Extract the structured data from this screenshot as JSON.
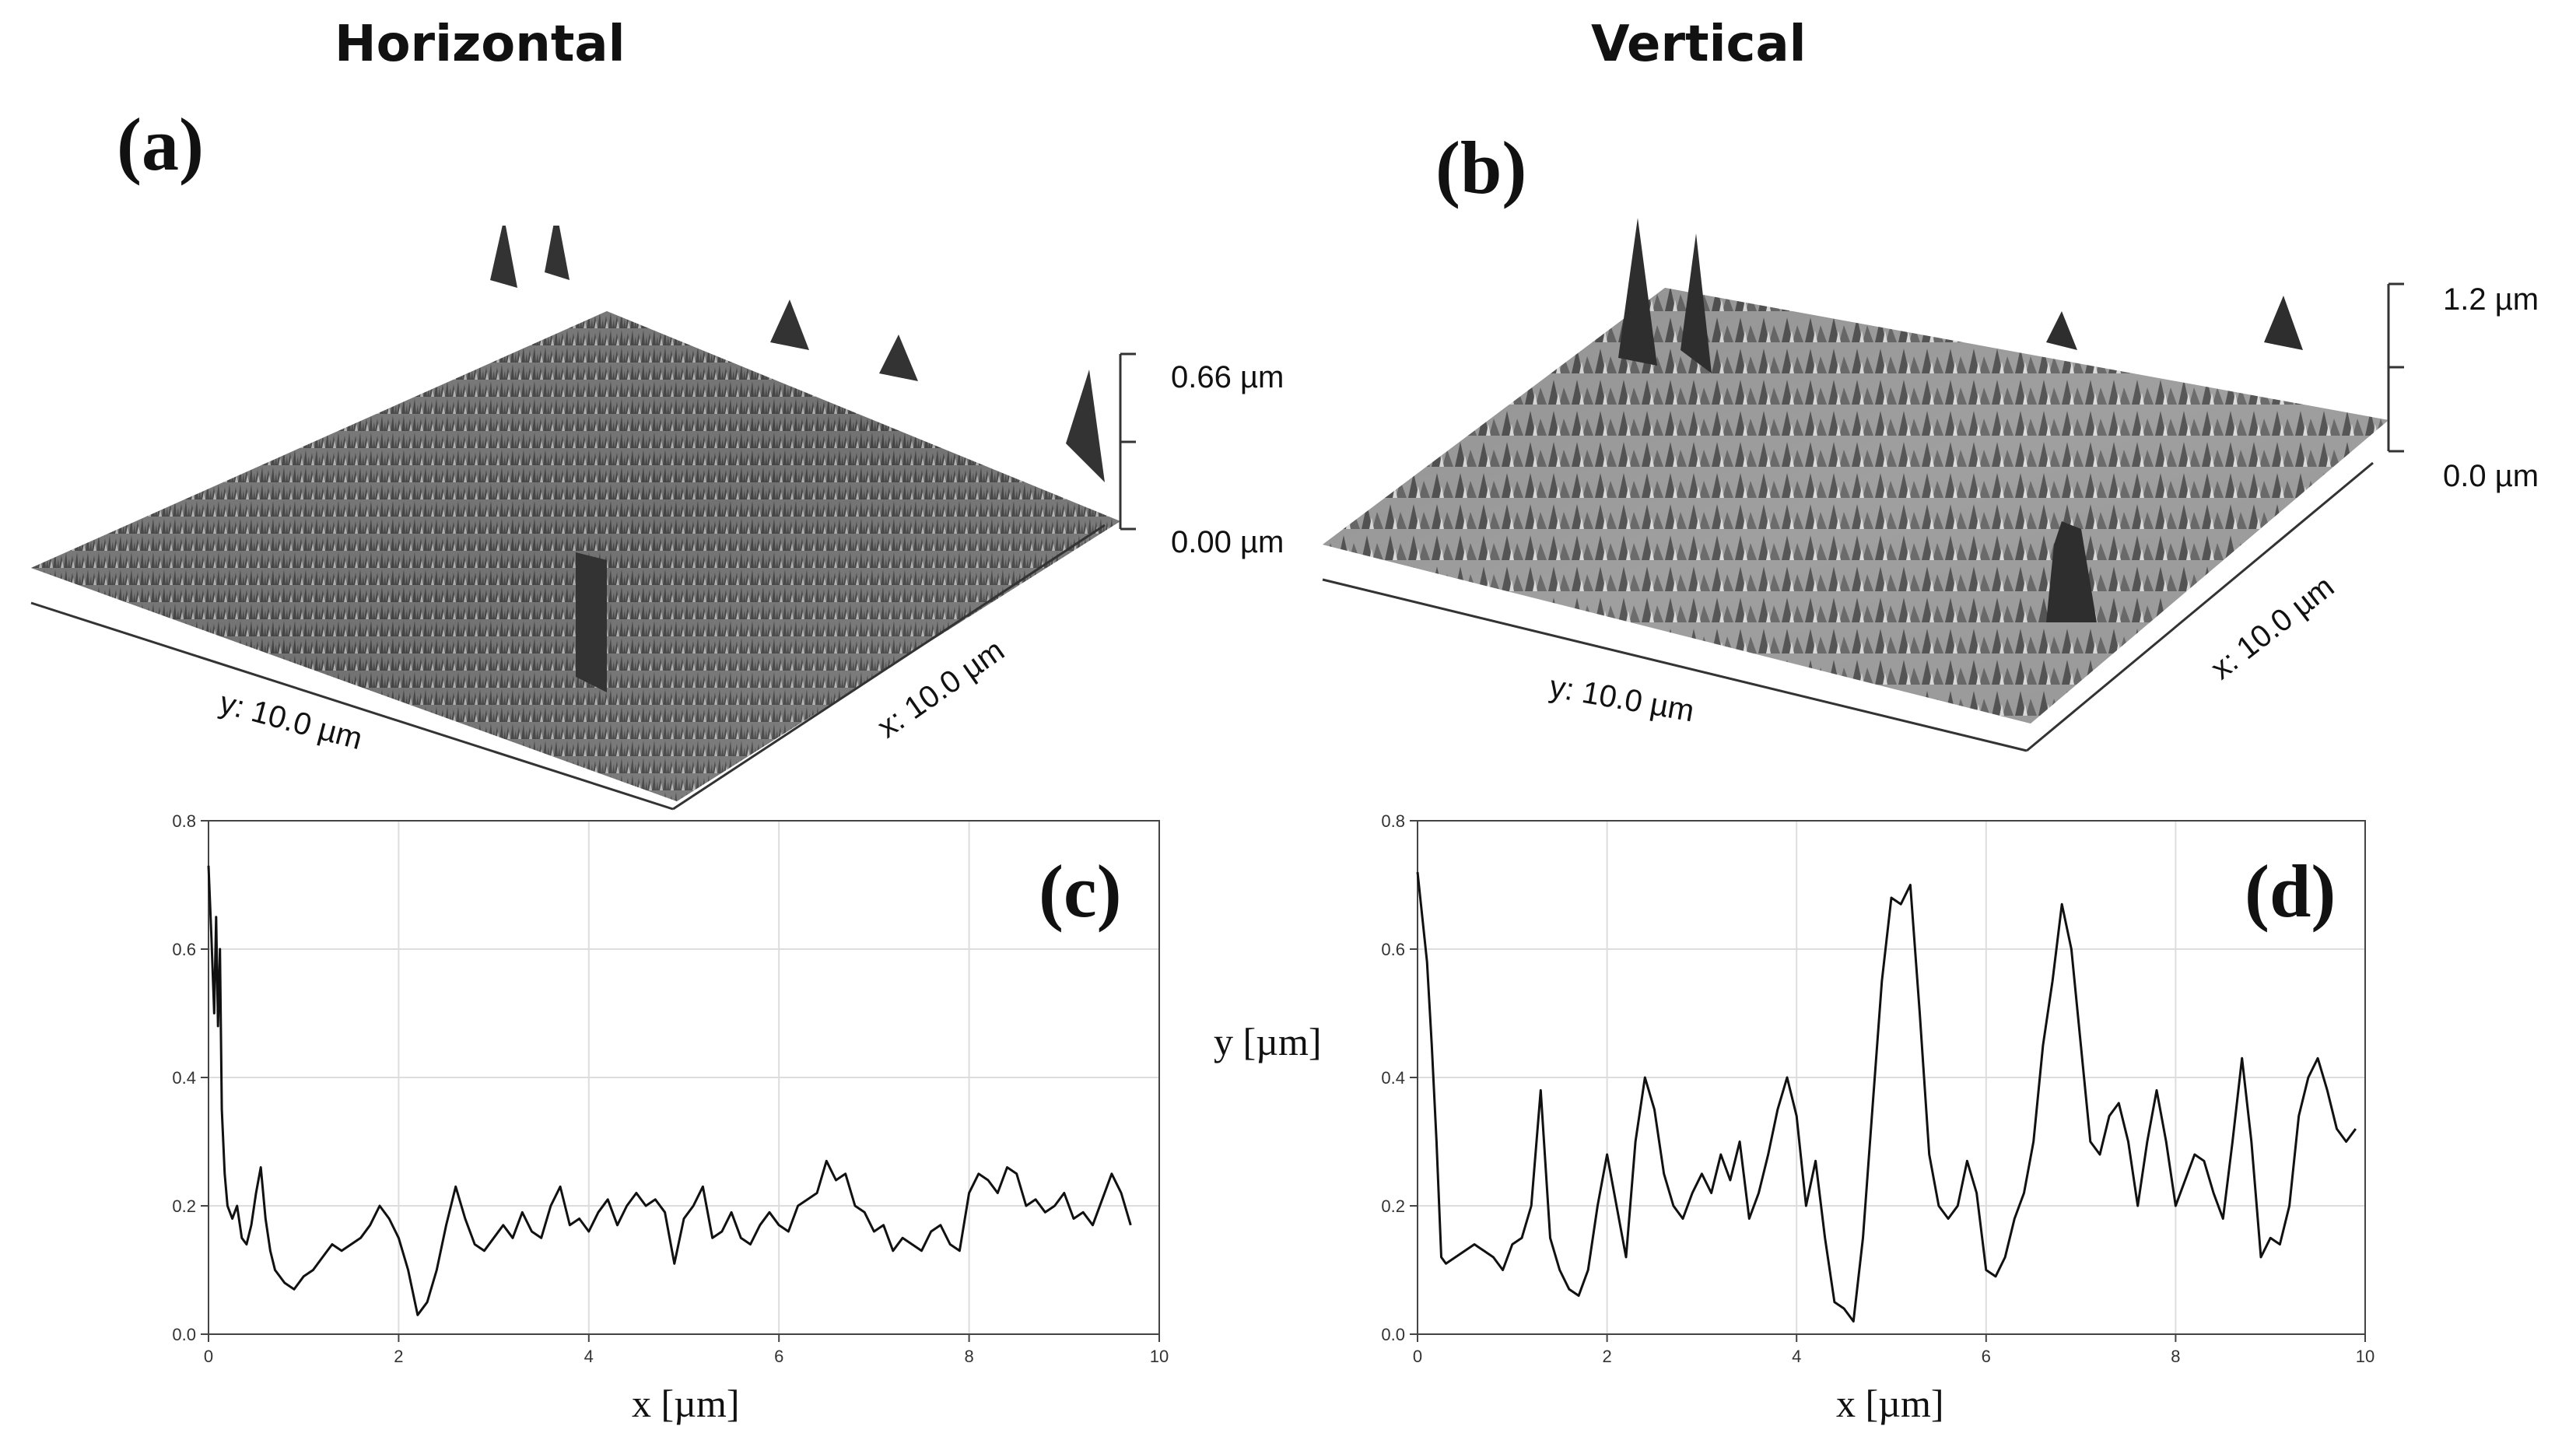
{
  "column_titles": {
    "left": "Horizontal",
    "right": "Vertical"
  },
  "panel_labels": {
    "a": "(a)",
    "b": "(b)",
    "c": "(c)",
    "d": "(d)"
  },
  "surface_a": {
    "height_top": "0.66 µm",
    "height_bottom": "0.00 µm",
    "x_label": "x: 10.0 µm",
    "y_label": "y: 10.0 µm"
  },
  "surface_b": {
    "height_top": "1.2 µm",
    "height_bottom": "0.0 µm",
    "x_label": "x: 10.0 µm",
    "y_label": "y: 10.0 µm"
  },
  "colors": {
    "line": "#111111",
    "grid": "#dddddd",
    "axis": "#444444",
    "surface_dark": "#3a3a3a",
    "surface_light": "#bdbdbd"
  },
  "chart_data": [
    {
      "type": "line",
      "panel": "(c)",
      "xlabel": "x [µm]",
      "ylabel": "",
      "xlim": [
        0,
        10
      ],
      "ylim": [
        0,
        0.8
      ],
      "xticks": [
        0,
        2,
        4,
        6,
        8,
        10
      ],
      "yticks": [
        "0.0",
        "0.2",
        "0.4",
        "0.6",
        "0.8"
      ],
      "grid": true,
      "series": [
        {
          "x": [
            0,
            0.03,
            0.06,
            0.08,
            0.1,
            0.12,
            0.14,
            0.17,
            0.2,
            0.25,
            0.3,
            0.35,
            0.4,
            0.45,
            0.5,
            0.55,
            0.6,
            0.65,
            0.7,
            0.8,
            0.9,
            1.0,
            1.1,
            1.2,
            1.3,
            1.4,
            1.5,
            1.6,
            1.7,
            1.8,
            1.9,
            2.0,
            2.1,
            2.2,
            2.3,
            2.4,
            2.5,
            2.6,
            2.7,
            2.8,
            2.9,
            3.0,
            3.1,
            3.2,
            3.3,
            3.4,
            3.5,
            3.6,
            3.7,
            3.8,
            3.9,
            4.0,
            4.1,
            4.2,
            4.3,
            4.4,
            4.5,
            4.6,
            4.7,
            4.8,
            4.9,
            5.0,
            5.1,
            5.2,
            5.3,
            5.4,
            5.5,
            5.6,
            5.7,
            5.8,
            5.9,
            6.0,
            6.1,
            6.2,
            6.3,
            6.4,
            6.5,
            6.6,
            6.7,
            6.8,
            6.9,
            7.0,
            7.1,
            7.2,
            7.3,
            7.4,
            7.5,
            7.6,
            7.7,
            7.8,
            7.9,
            8.0,
            8.1,
            8.2,
            8.3,
            8.4,
            8.5,
            8.6,
            8.7,
            8.8,
            8.9,
            9.0,
            9.1,
            9.2,
            9.3,
            9.4,
            9.5,
            9.6,
            9.7
          ],
          "y": [
            0.73,
            0.62,
            0.5,
            0.65,
            0.48,
            0.6,
            0.35,
            0.25,
            0.2,
            0.18,
            0.2,
            0.15,
            0.14,
            0.17,
            0.22,
            0.26,
            0.18,
            0.13,
            0.1,
            0.08,
            0.07,
            0.09,
            0.1,
            0.12,
            0.14,
            0.13,
            0.14,
            0.15,
            0.17,
            0.2,
            0.18,
            0.15,
            0.1,
            0.03,
            0.05,
            0.1,
            0.17,
            0.23,
            0.18,
            0.14,
            0.13,
            0.15,
            0.17,
            0.15,
            0.19,
            0.16,
            0.15,
            0.2,
            0.23,
            0.17,
            0.18,
            0.16,
            0.19,
            0.21,
            0.17,
            0.2,
            0.22,
            0.2,
            0.21,
            0.19,
            0.11,
            0.18,
            0.2,
            0.23,
            0.15,
            0.16,
            0.19,
            0.15,
            0.14,
            0.17,
            0.19,
            0.17,
            0.16,
            0.2,
            0.21,
            0.22,
            0.27,
            0.24,
            0.25,
            0.2,
            0.19,
            0.16,
            0.17,
            0.13,
            0.15,
            0.14,
            0.13,
            0.16,
            0.17,
            0.14,
            0.13,
            0.22,
            0.25,
            0.24,
            0.22,
            0.26,
            0.25,
            0.2,
            0.21,
            0.19,
            0.2,
            0.22,
            0.18,
            0.19,
            0.17,
            0.21,
            0.25,
            0.22,
            0.17
          ]
        }
      ]
    },
    {
      "type": "line",
      "panel": "(d)",
      "xlabel": "x [µm]",
      "ylabel": "y [µm]",
      "xlim": [
        0,
        10
      ],
      "ylim": [
        0,
        0.8
      ],
      "xticks": [
        0,
        2,
        4,
        6,
        8,
        10
      ],
      "yticks": [
        "0.0",
        "0.2",
        "0.4",
        "0.6",
        "0.8"
      ],
      "grid": true,
      "series": [
        {
          "x": [
            0,
            0.05,
            0.1,
            0.15,
            0.2,
            0.25,
            0.3,
            0.4,
            0.5,
            0.6,
            0.7,
            0.8,
            0.9,
            1.0,
            1.1,
            1.2,
            1.3,
            1.4,
            1.5,
            1.6,
            1.7,
            1.8,
            1.9,
            2.0,
            2.1,
            2.2,
            2.3,
            2.4,
            2.5,
            2.6,
            2.7,
            2.8,
            2.9,
            3.0,
            3.1,
            3.2,
            3.3,
            3.4,
            3.5,
            3.6,
            3.7,
            3.8,
            3.9,
            4.0,
            4.1,
            4.2,
            4.3,
            4.4,
            4.5,
            4.6,
            4.7,
            4.8,
            4.9,
            5.0,
            5.1,
            5.2,
            5.3,
            5.4,
            5.5,
            5.6,
            5.7,
            5.8,
            5.9,
            6.0,
            6.1,
            6.2,
            6.3,
            6.4,
            6.5,
            6.6,
            6.7,
            6.8,
            6.9,
            7.0,
            7.1,
            7.2,
            7.3,
            7.4,
            7.5,
            7.6,
            7.7,
            7.8,
            7.9,
            8.0,
            8.1,
            8.2,
            8.3,
            8.4,
            8.5,
            8.6,
            8.7,
            8.8,
            8.9,
            9.0,
            9.1,
            9.2,
            9.3,
            9.4,
            9.5,
            9.6,
            9.7,
            9.8,
            9.9
          ],
          "y": [
            0.72,
            0.65,
            0.58,
            0.45,
            0.3,
            0.12,
            0.11,
            0.12,
            0.13,
            0.14,
            0.13,
            0.12,
            0.1,
            0.14,
            0.15,
            0.2,
            0.38,
            0.15,
            0.1,
            0.07,
            0.06,
            0.1,
            0.2,
            0.28,
            0.2,
            0.12,
            0.3,
            0.4,
            0.35,
            0.25,
            0.2,
            0.18,
            0.22,
            0.25,
            0.22,
            0.28,
            0.24,
            0.3,
            0.18,
            0.22,
            0.28,
            0.35,
            0.4,
            0.34,
            0.2,
            0.27,
            0.15,
            0.05,
            0.04,
            0.02,
            0.15,
            0.35,
            0.55,
            0.68,
            0.67,
            0.7,
            0.5,
            0.28,
            0.2,
            0.18,
            0.2,
            0.27,
            0.22,
            0.1,
            0.09,
            0.12,
            0.18,
            0.22,
            0.3,
            0.45,
            0.55,
            0.67,
            0.6,
            0.45,
            0.3,
            0.28,
            0.34,
            0.36,
            0.3,
            0.2,
            0.3,
            0.38,
            0.3,
            0.2,
            0.24,
            0.28,
            0.27,
            0.22,
            0.18,
            0.3,
            0.43,
            0.3,
            0.12,
            0.15,
            0.14,
            0.2,
            0.34,
            0.4,
            0.43,
            0.38,
            0.32,
            0.3,
            0.32
          ]
        }
      ]
    }
  ]
}
